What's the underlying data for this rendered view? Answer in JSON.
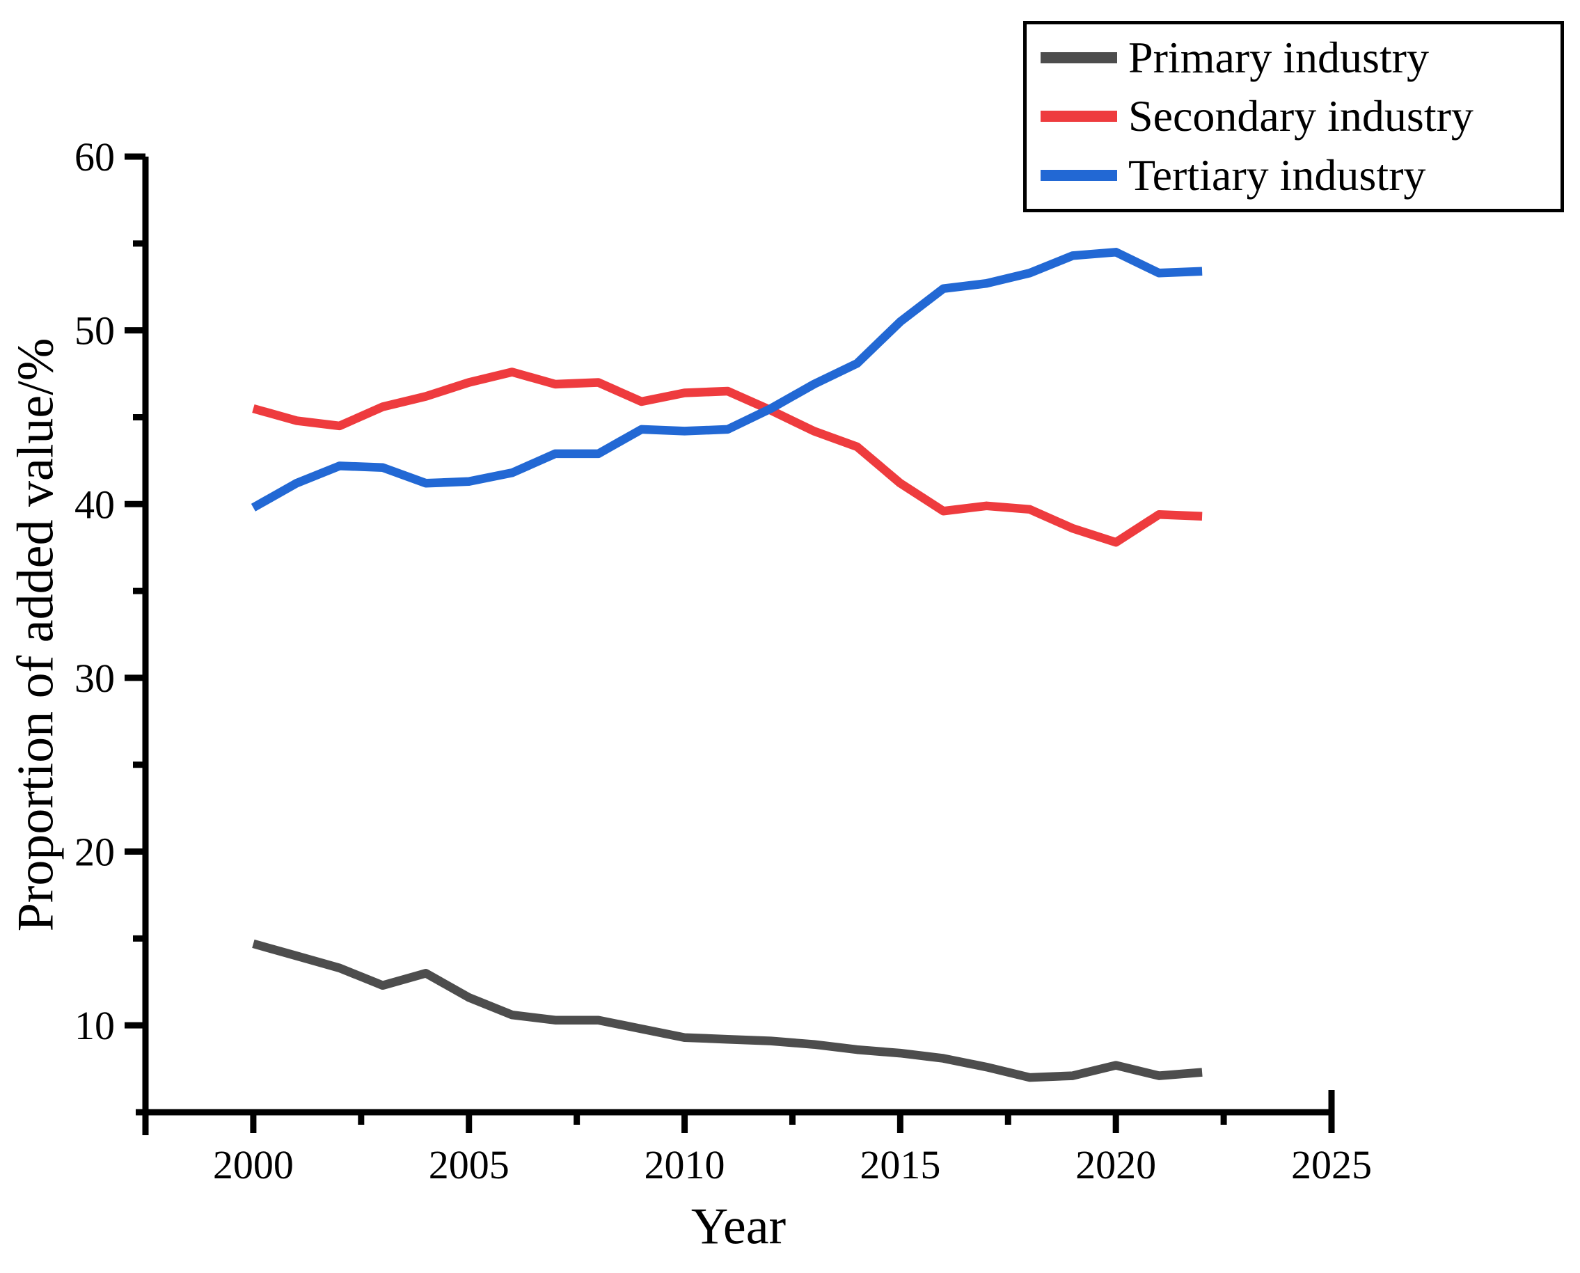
{
  "figure": {
    "background": "#ffffff"
  },
  "legend": {
    "position": "top-right",
    "items": [
      {
        "label": "Primary industry",
        "color": "#4D4D4D"
      },
      {
        "label": "Secondary industry",
        "color": "#EE3B3E"
      },
      {
        "label": "Tertiary industry",
        "color": "#2268D4"
      }
    ]
  },
  "chart_data": {
    "type": "line",
    "title": "",
    "xlabel": "Year",
    "ylabel": "Proportion of added value/%",
    "grid": false,
    "legend_position": "top-right",
    "x": [
      2000,
      2001,
      2002,
      2003,
      2004,
      2005,
      2006,
      2007,
      2008,
      2009,
      2010,
      2011,
      2012,
      2013,
      2014,
      2015,
      2016,
      2017,
      2018,
      2019,
      2020,
      2021,
      2022
    ],
    "series": [
      {
        "name": "Primary industry",
        "color": "#4D4D4D",
        "values": [
          14.7,
          14.0,
          13.3,
          12.3,
          13.0,
          11.6,
          10.6,
          10.3,
          10.3,
          9.8,
          9.3,
          9.2,
          9.1,
          8.9,
          8.6,
          8.4,
          8.1,
          7.6,
          7.0,
          7.1,
          7.7,
          7.1,
          7.3
        ]
      },
      {
        "name": "Secondary industry",
        "color": "#EE3B3E",
        "values": [
          45.5,
          44.8,
          44.5,
          45.6,
          46.2,
          47.0,
          47.6,
          46.9,
          47.0,
          45.9,
          46.4,
          46.5,
          45.4,
          44.2,
          43.3,
          41.2,
          39.6,
          39.9,
          39.7,
          38.6,
          37.8,
          39.4,
          39.3
        ]
      },
      {
        "name": "Tertiary industry",
        "color": "#2268D4",
        "values": [
          39.8,
          41.2,
          42.2,
          42.1,
          41.2,
          41.3,
          41.8,
          42.9,
          42.9,
          44.3,
          44.2,
          44.3,
          45.5,
          46.9,
          48.1,
          50.5,
          52.4,
          52.7,
          53.3,
          54.3,
          54.5,
          53.3,
          53.4
        ]
      }
    ],
    "x_axis": {
      "min": 1997.5,
      "max": 2025,
      "major_ticks": [
        2000,
        2005,
        2010,
        2015,
        2020,
        2025
      ],
      "minor_ticks": [
        2002.5,
        2007.5,
        2012.5,
        2017.5,
        2022.5
      ],
      "tick_labels": [
        "2000",
        "2005",
        "2010",
        "2015",
        "2020",
        "2025"
      ]
    },
    "y_axis": {
      "min": 5,
      "max": 60,
      "major_ticks": [
        10,
        20,
        30,
        40,
        50,
        60
      ],
      "minor_ticks": [
        15,
        25,
        35,
        45,
        55
      ],
      "tick_labels": [
        "10",
        "20",
        "30",
        "40",
        "50",
        "60"
      ]
    }
  }
}
